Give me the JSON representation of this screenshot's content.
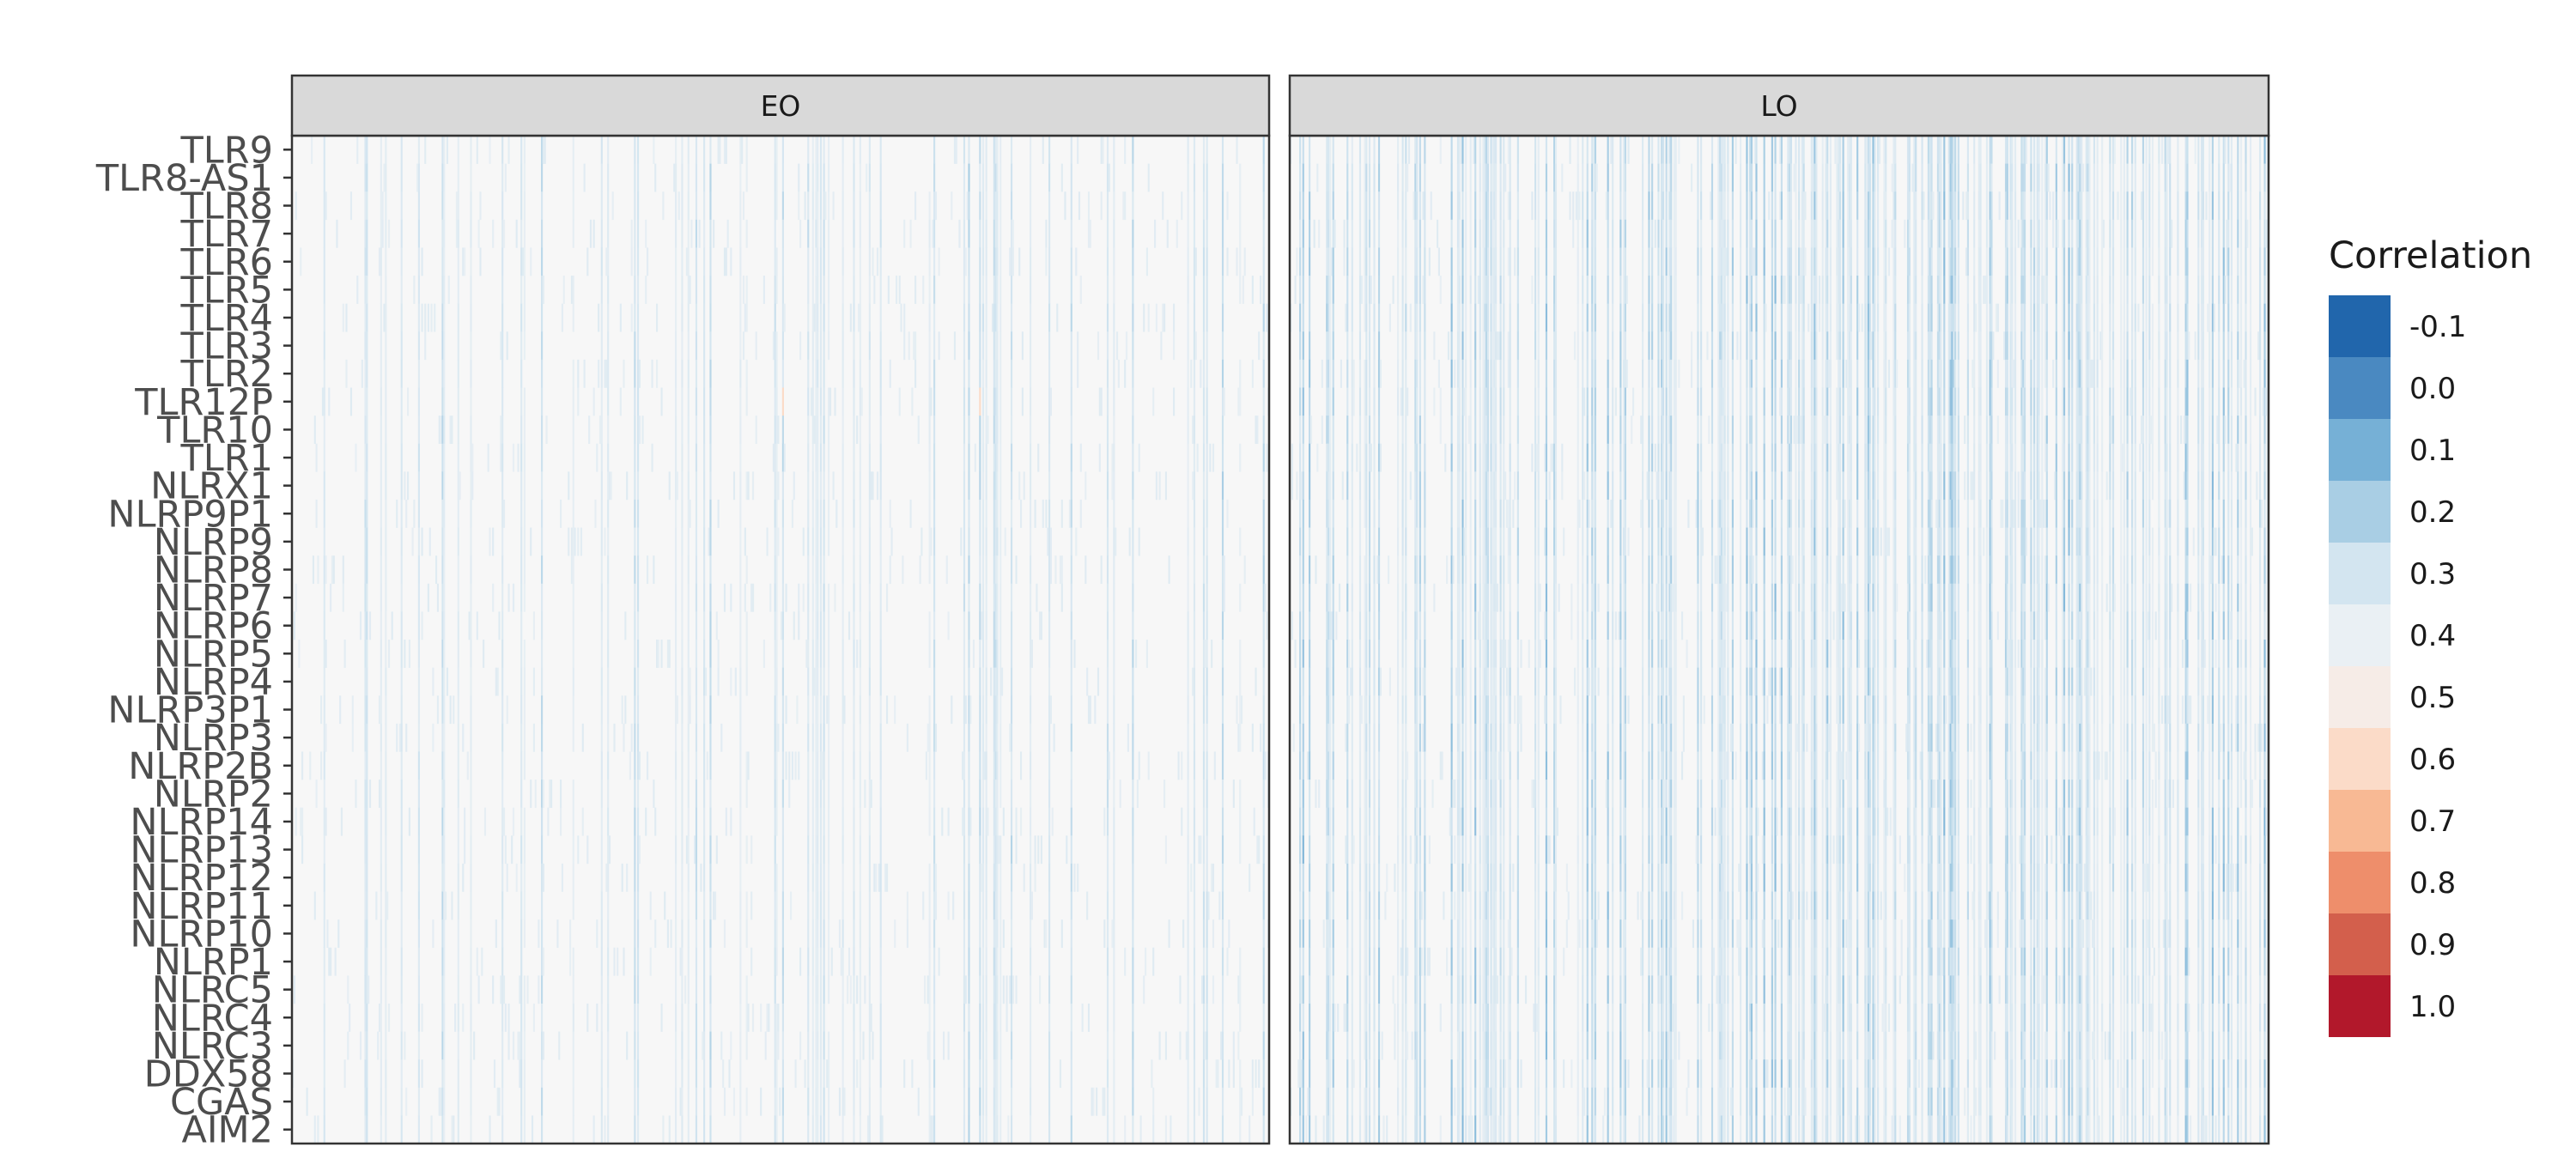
{
  "chart_data": {
    "type": "heatmap",
    "title": "",
    "xlabel": "",
    "ylabel": "",
    "facets": [
      "EO",
      "LO"
    ],
    "rows": [
      "TLR9",
      "TLR8-AS1",
      "TLR8",
      "TLR7",
      "TLR6",
      "TLR5",
      "TLR4",
      "TLR3",
      "TLR2",
      "TLR12P",
      "TLR10",
      "TLR1",
      "NLRX1",
      "NLRP9P1",
      "NLRP9",
      "NLRP8",
      "NLRP7",
      "NLRP6",
      "NLRP5",
      "NLRP4",
      "NLRP3P1",
      "NLRP3",
      "NLRP2B",
      "NLRP2",
      "NLRP14",
      "NLRP13",
      "NLRP12",
      "NLRP11",
      "NLRP10",
      "NLRP1",
      "NLRC5",
      "NLRC4",
      "NLRC3",
      "DDX58",
      "CGAS",
      "AIM2"
    ],
    "columns_per_facet": 620,
    "value_range": [
      -0.1,
      1.0
    ],
    "typical_values": {
      "EO": 0.4,
      "LO": 0.35
    },
    "legend": {
      "title": "Correlation",
      "position": "right",
      "breaks": [
        "-0.1",
        "0.0",
        "0.1",
        "0.2",
        "0.3",
        "0.4",
        "0.5",
        "0.6",
        "0.7",
        "0.8",
        "0.9",
        "1.0"
      ],
      "colors": [
        "#2166AC",
        "#4A89C1",
        "#76B0D6",
        "#A9CEE4",
        "#D3E5F0",
        "#EAF0F4",
        "#F6ECE7",
        "#FBDBC8",
        "#F8B994",
        "#EE8E6B",
        "#D35F4C",
        "#B2182B"
      ]
    },
    "background_color": "#F7F7F7",
    "strip_color": "#D9D9D9"
  }
}
